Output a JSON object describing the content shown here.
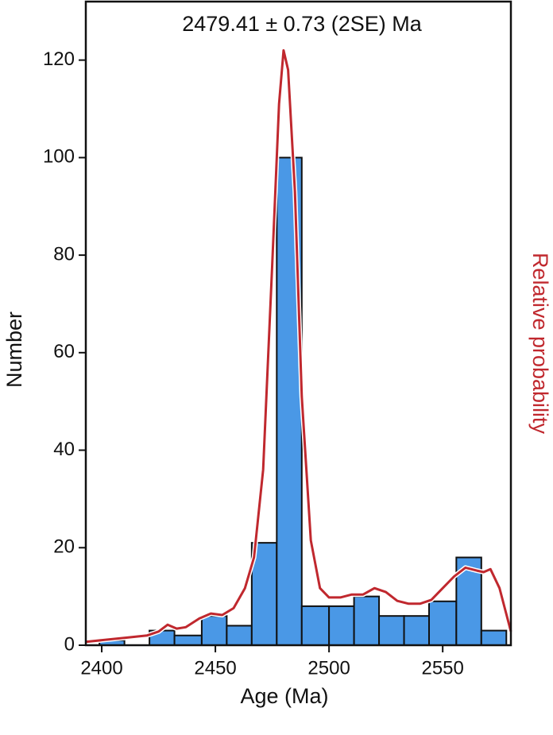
{
  "chart_data": {
    "type": "histogram",
    "title": "2479.41 ± 0.73 (2SE) Ma",
    "xlabel": "Age (Ma)",
    "ylabel": "Number",
    "y2label": "Relative probability",
    "bins": [
      2399,
      2410,
      2421,
      2432,
      2444,
      2455,
      2466,
      2477,
      2488,
      2500,
      2511,
      2522,
      2533,
      2544,
      2556,
      2567,
      2578
    ],
    "counts": [
      1,
      0,
      3,
      2,
      6,
      4,
      21,
      100,
      8,
      8,
      10,
      6,
      6,
      9,
      18,
      3
    ],
    "color": "#4a98e6",
    "edgecolor": "#111111",
    "xlim": [
      2393,
      2580
    ],
    "ylim": [
      0,
      132
    ],
    "xticks": [
      2400,
      2450,
      2500,
      2550
    ],
    "yticks": [
      0,
      20,
      40,
      60,
      80,
      100,
      120
    ],
    "curve": {
      "color": "#c0282e",
      "x": [
        2393,
        2410,
        2420,
        2425,
        2429,
        2433,
        2437,
        2443,
        2448,
        2453,
        2458,
        2463,
        2467,
        2471,
        2475,
        2478,
        2480,
        2482,
        2485,
        2488,
        2492,
        2496,
        2500,
        2505,
        2510,
        2515,
        2520,
        2525,
        2530,
        2535,
        2540,
        2545,
        2550,
        2555,
        2560,
        2565,
        2568,
        2571,
        2575,
        2580
      ],
      "values": [
        0.7,
        1.5,
        2,
        2.8,
        4.2,
        3.4,
        3.7,
        5.5,
        6.5,
        6.2,
        7.6,
        11.7,
        18,
        36,
        78,
        111,
        122,
        118,
        93,
        51,
        21.5,
        11.7,
        9.8,
        9.8,
        10.4,
        10.4,
        11.7,
        10.9,
        9.1,
        8.5,
        8.5,
        9.3,
        11.7,
        14.1,
        15.9,
        15.3,
        15,
        15.6,
        11.7,
        2.8
      ]
    }
  }
}
